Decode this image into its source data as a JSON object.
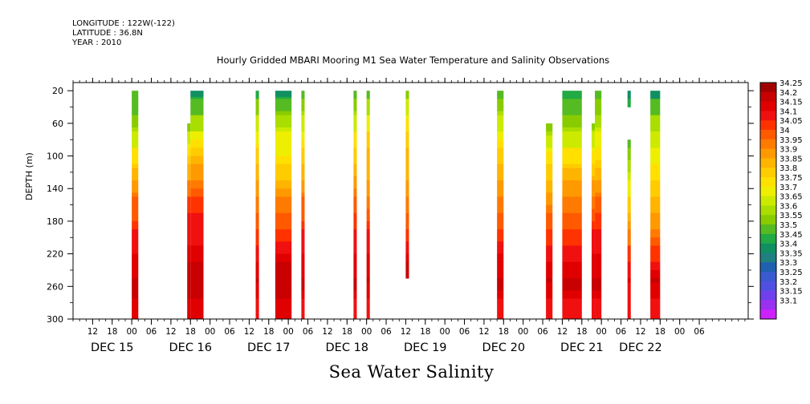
{
  "header": {
    "longitude": "LONGITUDE : 122W(-122)",
    "latitude": "LATITUDE : 36.8N",
    "year": "YEAR : 2010",
    "title": "Hourly Gridded MBARI Mooring M1 Sea Water Temperature and Salinity Observations"
  },
  "footer": {
    "variable_title": "Sea Water Salinity"
  },
  "chart_data": {
    "type": "heatmap",
    "title": "Hourly Gridded MBARI Mooring M1 Sea Water Temperature and Salinity Observations",
    "xlabel": "",
    "ylabel": "DEPTH (m)",
    "x_unit": "hours since 2010-12-14 06:00",
    "xlim": [
      0,
      207
    ],
    "ylim": [
      300,
      10
    ],
    "yticks": [
      20,
      60,
      100,
      140,
      180,
      220,
      260,
      300
    ],
    "xtick_labels": [
      {
        "h": 6,
        "label": "12"
      },
      {
        "h": 12,
        "label": "18"
      },
      {
        "h": 18,
        "label": "00"
      },
      {
        "h": 24,
        "label": "06"
      },
      {
        "h": 30,
        "label": "12"
      },
      {
        "h": 36,
        "label": "18"
      },
      {
        "h": 42,
        "label": "00"
      },
      {
        "h": 48,
        "label": "06"
      },
      {
        "h": 54,
        "label": "12"
      },
      {
        "h": 60,
        "label": "18"
      },
      {
        "h": 66,
        "label": "00"
      },
      {
        "h": 72,
        "label": "06"
      },
      {
        "h": 78,
        "label": "12"
      },
      {
        "h": 84,
        "label": "18"
      },
      {
        "h": 90,
        "label": "00"
      },
      {
        "h": 96,
        "label": "06"
      },
      {
        "h": 102,
        "label": "12"
      },
      {
        "h": 108,
        "label": "18"
      },
      {
        "h": 114,
        "label": "00"
      },
      {
        "h": 120,
        "label": "06"
      },
      {
        "h": 126,
        "label": "12"
      },
      {
        "h": 132,
        "label": "18"
      },
      {
        "h": 138,
        "label": "00"
      },
      {
        "h": 144,
        "label": "06"
      },
      {
        "h": 150,
        "label": "12"
      },
      {
        "h": 156,
        "label": "18"
      },
      {
        "h": 162,
        "label": "00"
      },
      {
        "h": 168,
        "label": "06"
      },
      {
        "h": 174,
        "label": "12"
      },
      {
        "h": 180,
        "label": "18"
      },
      {
        "h": 186,
        "label": "00"
      },
      {
        "h": 192,
        "label": "06"
      }
    ],
    "day_labels": [
      {
        "h": 12,
        "label": "DEC 15"
      },
      {
        "h": 36,
        "label": "DEC 16"
      },
      {
        "h": 60,
        "label": "DEC 17"
      },
      {
        "h": 84,
        "label": "DEC 18"
      },
      {
        "h": 108,
        "label": "DEC 19"
      },
      {
        "h": 132,
        "label": "DEC 20"
      },
      {
        "h": 156,
        "label": "DEC 21"
      },
      {
        "h": 174,
        "label": "DEC 22"
      }
    ],
    "colorbar": {
      "levels": [
        "34.25",
        "34.2",
        "34.15",
        "34.1",
        "34.05",
        "34",
        "33.95",
        "33.9",
        "33.85",
        "33.8",
        "33.75",
        "33.7",
        "33.65",
        "33.6",
        "33.55",
        "33.5",
        "33.45",
        "33.4",
        "33.35",
        "33.3",
        "33.25",
        "33.2",
        "33.15",
        "33.1"
      ],
      "colors": [
        "#a00000",
        "#c80000",
        "#e00000",
        "#f01010",
        "#ff3300",
        "#ff5a00",
        "#ff7a00",
        "#ff9900",
        "#ffb400",
        "#ffcc00",
        "#ffe000",
        "#eeee00",
        "#ccea00",
        "#aadd00",
        "#88cc00",
        "#55bb22",
        "#22aa44",
        "#109060",
        "#208080",
        "#2060b0",
        "#3a5ad0",
        "#5050e0",
        "#7040ee",
        "#9a30f0",
        "#cc22ff"
      ]
    },
    "depth_profile": {
      "depths": [
        20,
        40,
        60,
        80,
        100,
        120,
        140,
        160,
        180,
        200,
        220,
        240,
        260,
        280,
        300
      ],
      "typical_salinity": [
        33.45,
        33.5,
        33.55,
        33.65,
        33.75,
        33.82,
        33.9,
        33.98,
        34.02,
        34.08,
        34.12,
        34.16,
        34.22,
        34.18,
        34.15
      ]
    },
    "series": [
      {
        "x0": 18,
        "x1": 20,
        "top": 20,
        "bottom": 300,
        "values": [
          33.5,
          33.53,
          33.58,
          33.66,
          33.76,
          33.84,
          33.92,
          34.0,
          34.04,
          34.1,
          34.14,
          34.18,
          34.23,
          34.2,
          34.15
        ]
      },
      {
        "x0": 35,
        "x1": 36,
        "top": 60,
        "bottom": 300,
        "values": [
          null,
          null,
          33.55,
          33.66,
          33.78,
          33.86,
          33.96,
          34.06,
          34.1,
          34.12,
          34.15,
          34.2,
          34.24,
          34.2,
          34.15
        ]
      },
      {
        "x0": 36,
        "x1": 40,
        "top": 20,
        "bottom": 300,
        "values": [
          33.42,
          33.5,
          33.6,
          33.72,
          33.84,
          33.9,
          33.98,
          34.06,
          34.1,
          34.12,
          34.16,
          34.2,
          34.24,
          34.2,
          34.15
        ]
      },
      {
        "x0": 56,
        "x1": 57,
        "top": 20,
        "bottom": 300,
        "values": [
          33.45,
          33.55,
          33.65,
          33.72,
          33.8,
          33.86,
          33.92,
          33.98,
          34.03,
          34.08,
          34.12,
          34.16,
          34.2,
          34.15,
          34.12
        ]
      },
      {
        "x0": 62,
        "x1": 67,
        "top": 20,
        "bottom": 300,
        "values": [
          33.42,
          33.52,
          33.62,
          33.7,
          33.74,
          33.8,
          33.88,
          33.98,
          34.02,
          34.08,
          34.14,
          34.2,
          34.24,
          34.2,
          34.16
        ]
      },
      {
        "x0": 70,
        "x1": 71,
        "top": 20,
        "bottom": 300,
        "values": [
          33.5,
          33.58,
          33.66,
          33.74,
          33.8,
          33.86,
          33.92,
          34.0,
          34.04,
          34.1,
          34.14,
          34.18,
          34.22,
          34.15,
          34.12
        ]
      },
      {
        "x0": 86,
        "x1": 87,
        "top": 20,
        "bottom": 300,
        "values": [
          33.5,
          33.58,
          33.66,
          33.76,
          33.82,
          33.88,
          33.94,
          34.0,
          34.05,
          34.1,
          34.14,
          34.18,
          34.22,
          34.15,
          34.12
        ]
      },
      {
        "x0": 90,
        "x1": 91,
        "top": 20,
        "bottom": 300,
        "values": [
          33.5,
          33.6,
          33.7,
          33.8,
          33.85,
          33.88,
          33.92,
          33.98,
          34.04,
          34.1,
          34.14,
          34.18,
          34.2,
          34.15,
          34.12
        ]
      },
      {
        "x0": 102,
        "x1": 103,
        "top": 20,
        "bottom": 250,
        "values": [
          33.55,
          33.65,
          33.74,
          33.82,
          33.85,
          33.88,
          33.92,
          33.96,
          34.02,
          34.08,
          34.14,
          34.2,
          null,
          null,
          null
        ]
      },
      {
        "x0": 130,
        "x1": 132,
        "top": 20,
        "bottom": 300,
        "values": [
          33.52,
          33.58,
          33.66,
          33.74,
          33.8,
          33.86,
          33.92,
          33.98,
          34.03,
          34.08,
          34.14,
          34.18,
          34.22,
          34.15,
          34.12
        ]
      },
      {
        "x0": 145,
        "x1": 147,
        "top": 60,
        "bottom": 300,
        "values": [
          null,
          null,
          33.56,
          33.64,
          33.74,
          33.82,
          33.88,
          33.94,
          34.02,
          34.08,
          34.12,
          34.16,
          34.2,
          34.15,
          34.12
        ]
      },
      {
        "x0": 150,
        "x1": 156,
        "top": 20,
        "bottom": 300,
        "values": [
          33.48,
          33.52,
          33.58,
          33.66,
          33.76,
          33.84,
          33.92,
          33.98,
          34.02,
          34.08,
          34.12,
          34.18,
          34.22,
          34.15,
          34.12
        ]
      },
      {
        "x0": 159,
        "x1": 160,
        "top": 60,
        "bottom": 300,
        "values": [
          null,
          null,
          33.58,
          33.66,
          33.74,
          33.82,
          33.9,
          33.98,
          34.04,
          34.1,
          34.14,
          34.18,
          34.22,
          34.15,
          34.12
        ]
      },
      {
        "x0": 160,
        "x1": 162,
        "top": 20,
        "bottom": 300,
        "values": [
          33.5,
          33.56,
          33.62,
          33.7,
          33.78,
          33.84,
          33.92,
          34.0,
          34.05,
          34.1,
          34.14,
          34.18,
          34.22,
          34.15,
          34.12
        ]
      },
      {
        "x0": 170,
        "x1": 171,
        "top": 20,
        "bottom": 40,
        "values": [
          33.42,
          33.45,
          null,
          null,
          null,
          null,
          null,
          null,
          null,
          null,
          null,
          null,
          null,
          null,
          null
        ]
      },
      {
        "x0": 170,
        "x1": 171,
        "top": 80,
        "bottom": 300,
        "values": [
          null,
          null,
          null,
          33.52,
          33.58,
          33.64,
          33.7,
          33.8,
          33.88,
          33.96,
          34.06,
          34.12,
          34.15,
          34.12,
          34.1
        ]
      },
      {
        "x0": 177,
        "x1": 180,
        "top": 20,
        "bottom": 300,
        "values": [
          33.4,
          33.5,
          33.6,
          33.68,
          33.72,
          33.76,
          33.8,
          33.86,
          33.9,
          33.98,
          34.06,
          34.14,
          34.2,
          34.15,
          34.12
        ]
      }
    ]
  }
}
